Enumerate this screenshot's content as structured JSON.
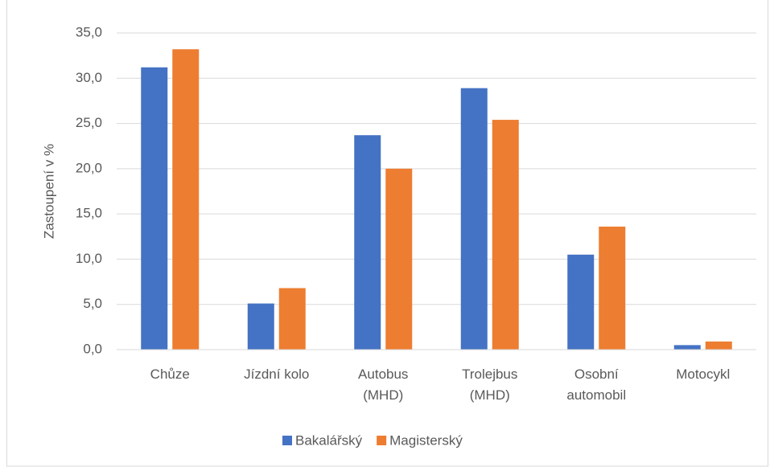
{
  "chart_data": {
    "type": "bar",
    "y_label": "Zastoupení v %",
    "categories": [
      "Chůze",
      "Jízdní kolo",
      "Autobus\n(MHD)",
      "Trolejbus\n(MHD)",
      "Osobní\nautomobil",
      "Motocykl"
    ],
    "series": [
      {
        "name": "Bakalářský",
        "color": "#4472c4",
        "values": [
          31.2,
          5.1,
          23.7,
          28.9,
          10.5,
          0.5
        ]
      },
      {
        "name": "Magisterský",
        "color": "#ed7d31",
        "values": [
          33.2,
          6.8,
          20.0,
          25.4,
          13.6,
          0.9
        ]
      }
    ],
    "ylim": [
      0,
      35
    ],
    "yticks": [
      {
        "value": 0,
        "label": "0,0"
      },
      {
        "value": 5,
        "label": "5,0"
      },
      {
        "value": 10,
        "label": "10,0"
      },
      {
        "value": 15,
        "label": "15,0"
      },
      {
        "value": 20,
        "label": "20,0"
      },
      {
        "value": 25,
        "label": "25,0"
      },
      {
        "value": 30,
        "label": "30,0"
      },
      {
        "value": 35,
        "label": "35,0"
      }
    ],
    "grid": true,
    "legend": "bottom"
  }
}
